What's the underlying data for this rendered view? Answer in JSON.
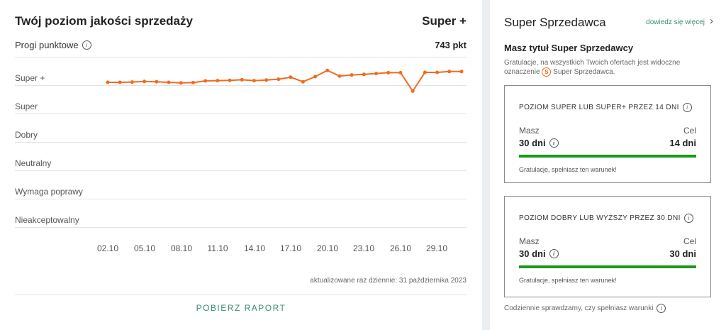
{
  "left": {
    "title": "Twój poziom jakości sprzedaży",
    "current_level": "Super +",
    "progi_label": "Progi punktowe",
    "points": "743 pkt",
    "levels": [
      "Super +",
      "Super",
      "Dobry",
      "Neutralny",
      "Wymaga poprawy",
      "Nieakceptowalny"
    ],
    "updated": "aktualizowane raz dziennie: 31 października 2023",
    "download_label": "POBIERZ RAPORT"
  },
  "chart_data": {
    "type": "line",
    "x_tick_labels": [
      "02.10",
      "05.10",
      "08.10",
      "11.10",
      "14.10",
      "17.10",
      "20.10",
      "23.10",
      "26.10",
      "29.10"
    ],
    "y_categories": [
      "Nieakceptowalny",
      "Wymaga poprawy",
      "Neutralny",
      "Dobry",
      "Super",
      "Super +"
    ],
    "series": [
      {
        "color": "#f26b1d",
        "x": [
          "02.10",
          "03.10",
          "04.10",
          "05.10",
          "06.10",
          "07.10",
          "08.10",
          "09.10",
          "10.10",
          "11.10",
          "12.10",
          "13.10",
          "14.10",
          "15.10",
          "16.10",
          "17.10",
          "18.10",
          "19.10",
          "20.10",
          "21.10",
          "22.10",
          "23.10",
          "24.10",
          "25.10",
          "26.10",
          "27.10",
          "28.10",
          "29.10",
          "30.10",
          "31.10"
        ],
        "level_position": [
          5.1,
          5.1,
          5.11,
          5.13,
          5.12,
          5.1,
          5.08,
          5.09,
          5.15,
          5.16,
          5.17,
          5.19,
          5.16,
          5.18,
          5.21,
          5.28,
          5.12,
          5.3,
          5.52,
          5.32,
          5.36,
          5.38,
          5.41,
          5.44,
          5.44,
          4.79,
          5.45,
          5.45,
          5.48,
          5.48
        ]
      }
    ]
  },
  "right": {
    "title": "Super Sprzedawca",
    "more_link": "dowiedz się więcej",
    "subtitle": "Masz tytuł Super Sprzedawcy",
    "desc_1": "Gratulacje, na wszystkich Twoich ofertach jest widoczne oznaczenie",
    "desc_badge": "S",
    "desc_2": "Super Sprzedawca.",
    "conditions": [
      {
        "title": "POZIOM SUPER LUB SUPER+ PRZEZ 14 DNI",
        "have_label": "Masz",
        "have_value": "30 dni",
        "goal_label": "Cel",
        "goal_value": "14 dni",
        "progress": 1.0,
        "message": "Gratulacje, spełniasz ten warunek!"
      },
      {
        "title": "POZIOM DOBRY LUB WYŻSZY PRZEZ 30 DNI",
        "have_label": "Masz",
        "have_value": "30 dni",
        "goal_label": "Cel",
        "goal_value": "30 dni",
        "progress": 1.0,
        "message": "Gratulacje, spełniasz ten warunek!"
      }
    ],
    "footer": "Codziennie sprawdzamy, czy spełniasz warunki"
  },
  "colors": {
    "accent": "#3a8d74",
    "line": "#f26b1d",
    "progress": "#1a9a1a"
  }
}
